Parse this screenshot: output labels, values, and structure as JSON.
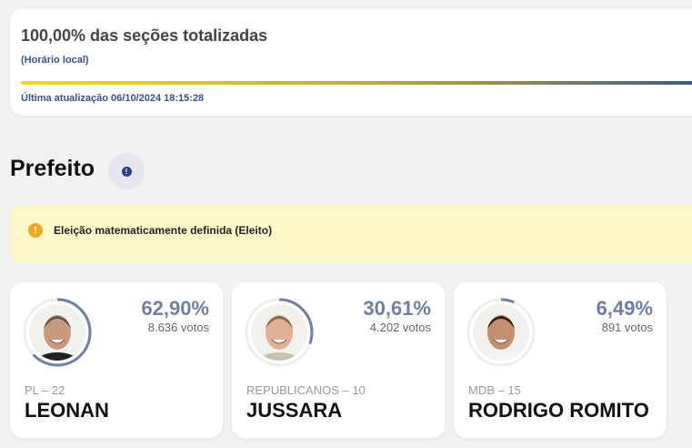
{
  "status": {
    "title": "100,00% das seções totalizadas",
    "local_time": "(Horário local)",
    "progress_percent": 100,
    "last_update": "Última atualização 06/10/2024 18:15:28"
  },
  "section": {
    "title": "Prefeito",
    "info_icon": "info-icon"
  },
  "banner": {
    "icon": "warning-icon",
    "text": "Eleição matematicamente definida (Eleito)"
  },
  "colors": {
    "ring": "#6f7fa6",
    "banner_bg": "#fdf8c9",
    "accent": "#3a4f8f"
  },
  "candidates": [
    {
      "pct": "62,90%",
      "votes": "8.636 votos",
      "party": "PL – 22",
      "name": "LEONAN",
      "share": 62.9,
      "skin": "#c99a7e",
      "hair": "#555",
      "shirt": "#222"
    },
    {
      "pct": "30,61%",
      "votes": "4.202 votos",
      "party": "REPUBLICANOS – 10",
      "name": "JUSSARA",
      "share": 30.61,
      "skin": "#e0b196",
      "hair": "#7a6a4a",
      "shirt": "#c9c2b0"
    },
    {
      "pct": "6,49%",
      "votes": "891 votos",
      "party": "MDB – 15",
      "name": "RODRIGO ROMITO",
      "share": 6.49,
      "skin": "#c48f6c",
      "hair": "#2a1e17",
      "shirt": "#f4f4f4"
    }
  ]
}
